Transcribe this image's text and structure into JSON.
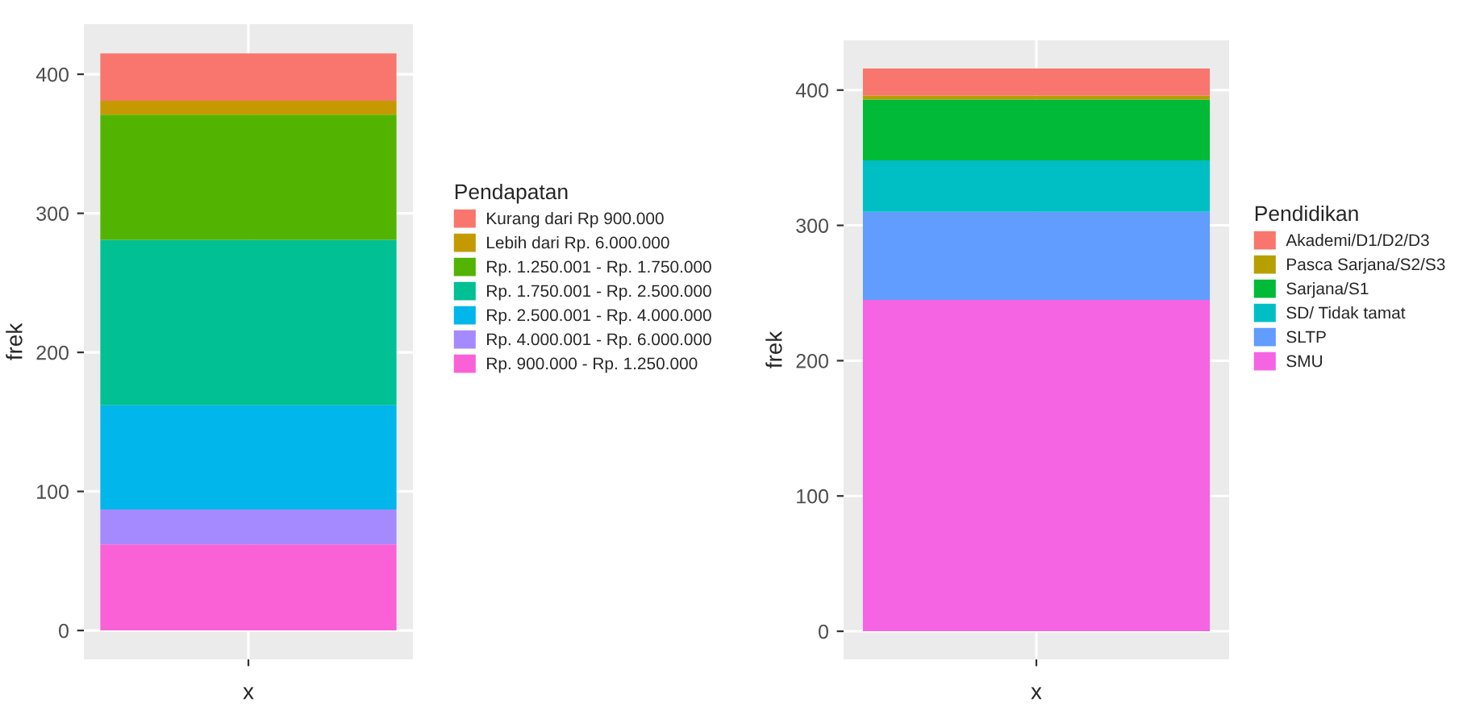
{
  "chart_data": [
    {
      "type": "bar",
      "stacked": true,
      "categories": [
        null
      ],
      "xlabel": "x",
      "ylabel": "frek",
      "legend_title": "Pendapatan",
      "legend": "right",
      "grid": true,
      "ylim": [
        -20.8,
        436
      ],
      "yticks": [
        0,
        100,
        200,
        300,
        400
      ],
      "series": [
        {
          "name": "Rp. 900.000 - Rp. 1.250.000",
          "color": "#fb61d7",
          "values": [
            62
          ]
        },
        {
          "name": "Rp. 4.000.001 - Rp. 6.000.000",
          "color": "#a58aff",
          "values": [
            25
          ]
        },
        {
          "name": "Rp. 2.500.001 - Rp. 4.000.000",
          "color": "#00b6eb",
          "values": [
            75
          ]
        },
        {
          "name": "Rp. 1.750.001 - Rp. 2.500.000",
          "color": "#00c094",
          "values": [
            119
          ]
        },
        {
          "name": "Rp. 1.250.001 - Rp. 1.750.000",
          "color": "#53b400",
          "values": [
            90
          ]
        },
        {
          "name": "Lebih dari Rp. 6.000.000",
          "color": "#c49a00",
          "values": [
            10
          ]
        },
        {
          "name": "Kurang dari Rp 900.000",
          "color": "#f8766d",
          "values": [
            34
          ]
        }
      ]
    },
    {
      "type": "bar",
      "stacked": true,
      "categories": [
        null
      ],
      "xlabel": "x",
      "ylabel": "frek",
      "legend_title": "Pendidikan",
      "legend": "right",
      "grid": true,
      "ylim": [
        -20.8,
        436.8
      ],
      "yticks": [
        0,
        100,
        200,
        300,
        400
      ],
      "series": [
        {
          "name": "SMU",
          "color": "#f564e3",
          "values": [
            245
          ]
        },
        {
          "name": "SLTP",
          "color": "#619cff",
          "values": [
            65
          ]
        },
        {
          "name": "SD/ Tidak tamat",
          "color": "#00bfc4",
          "values": [
            38
          ]
        },
        {
          "name": "Sarjana/S1",
          "color": "#00ba38",
          "values": [
            45
          ]
        },
        {
          "name": "Pasca Sarjana/S2/S3",
          "color": "#b79f00",
          "values": [
            3
          ]
        },
        {
          "name": "Akademi/D1/D2/D3",
          "color": "#f8766d",
          "values": [
            20
          ]
        }
      ]
    }
  ]
}
